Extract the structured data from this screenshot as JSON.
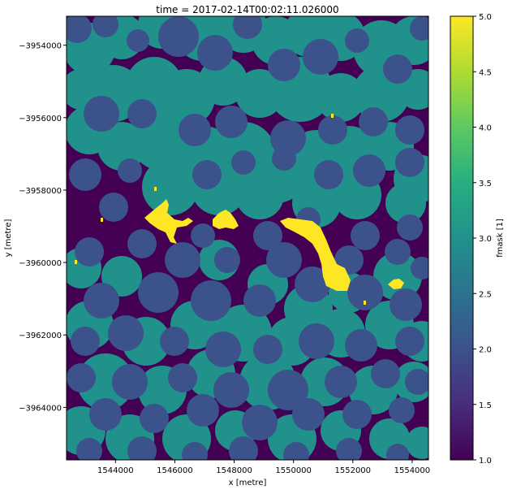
{
  "chart_data": {
    "type": "heatmap",
    "title": "time = 2017-02-14T00:02:11.026000",
    "xlabel": "x [metre]",
    "ylabel": "y [metre]",
    "xlim": [
      1542350,
      1554550
    ],
    "ylim": [
      -3965450,
      -3953200
    ],
    "x_ticks": [
      1544000,
      1546000,
      1548000,
      1550000,
      1552000,
      1554000
    ],
    "x_tick_labels": [
      "1544000",
      "1546000",
      "1548000",
      "1550000",
      "1552000",
      "1554000"
    ],
    "y_ticks": [
      -3954000,
      -3956000,
      -3958000,
      -3960000,
      -3962000,
      -3964000
    ],
    "y_tick_labels": [
      "−3954000",
      "−3956000",
      "−3958000",
      "−3960000",
      "−3962000",
      "−3964000"
    ],
    "colorbar": {
      "label": "fmask [1]",
      "range": [
        1.0,
        5.0
      ],
      "ticks": [
        1.0,
        1.5,
        2.0,
        2.5,
        3.0,
        3.5,
        4.0,
        4.5,
        5.0
      ],
      "tick_labels": [
        "1.0",
        "1.5",
        "2.0",
        "2.5",
        "3.0",
        "3.5",
        "4.0",
        "4.5",
        "5.0"
      ],
      "colormap": "viridis"
    },
    "classes": [
      {
        "value": 1,
        "color": "#440154"
      },
      {
        "value": 2,
        "color": "#3b528b"
      },
      {
        "value": 3,
        "color": "#21918c"
      },
      {
        "value": 5,
        "color": "#fde725"
      }
    ],
    "grid": false
  }
}
